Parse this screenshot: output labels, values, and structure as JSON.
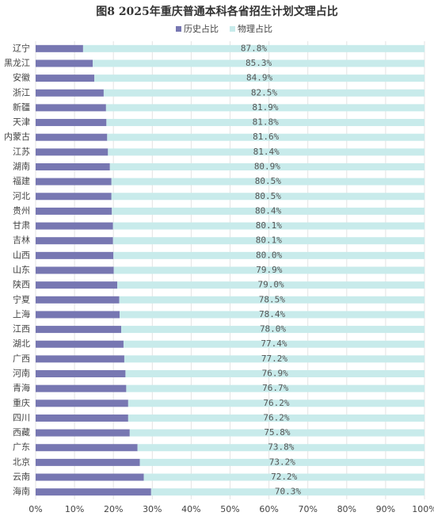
{
  "chart_data": {
    "type": "stacked_barh",
    "title": "图8  2025年重庆普通本科各省招生计划文理占比",
    "categories": [
      "辽宁",
      "黑龙江",
      "安徽",
      "浙江",
      "新疆",
      "天津",
      "内蒙古",
      "江苏",
      "湖南",
      "福建",
      "河北",
      "贵州",
      "甘肃",
      "吉林",
      "山西",
      "山东",
      "陕西",
      "宁夏",
      "上海",
      "江西",
      "湖北",
      "广西",
      "河南",
      "青海",
      "重庆",
      "四川",
      "西藏",
      "广东",
      "北京",
      "云南",
      "海南"
    ],
    "series": [
      {
        "name": "历史占比",
        "color": "#7777b2",
        "values": [
          12.2,
          14.7,
          15.1,
          17.5,
          18.1,
          18.2,
          18.4,
          18.6,
          19.1,
          19.5,
          19.5,
          19.6,
          19.9,
          19.9,
          20.0,
          20.1,
          21.0,
          21.5,
          21.6,
          22.0,
          22.6,
          22.8,
          23.1,
          23.3,
          23.8,
          23.8,
          24.2,
          26.2,
          26.8,
          27.8,
          29.7
        ]
      },
      {
        "name": "物理占比",
        "color": "#c8ebeb",
        "values": [
          87.8,
          85.3,
          84.9,
          82.5,
          81.9,
          81.8,
          81.6,
          81.4,
          80.9,
          80.5,
          80.5,
          80.4,
          80.1,
          80.1,
          80.0,
          79.9,
          79.0,
          78.5,
          78.4,
          78.0,
          77.4,
          77.2,
          76.9,
          76.7,
          76.2,
          76.2,
          75.8,
          73.8,
          73.2,
          72.2,
          70.3
        ],
        "value_labels": [
          "87.8%",
          "85.3%",
          "84.9%",
          "82.5%",
          "81.9%",
          "81.8%",
          "81.6%",
          "81.4%",
          "80.9%",
          "80.5%",
          "80.5%",
          "80.4%",
          "80.1%",
          "80.1%",
          "80.0%",
          "79.9%",
          "79.0%",
          "78.5%",
          "78.4%",
          "78.0%",
          "77.4%",
          "77.2%",
          "76.9%",
          "76.7%",
          "76.2%",
          "76.2%",
          "75.8%",
          "73.8%",
          "73.2%",
          "72.2%",
          "70.3%"
        ]
      }
    ],
    "xlim": [
      0,
      100
    ],
    "xticks": [
      {
        "value": 0,
        "label": "0%"
      },
      {
        "value": 10,
        "label": "10%"
      },
      {
        "value": 20,
        "label": "20%"
      },
      {
        "value": 30,
        "label": "30%"
      },
      {
        "value": 40,
        "label": "40%"
      },
      {
        "value": 50,
        "label": "50%"
      },
      {
        "value": 60,
        "label": "60%"
      },
      {
        "value": 70,
        "label": "70%"
      },
      {
        "value": 80,
        "label": "80%"
      },
      {
        "value": 90,
        "label": "90%"
      },
      {
        "value": 100,
        "label": "100%"
      }
    ],
    "grid": true,
    "legend": "top"
  }
}
